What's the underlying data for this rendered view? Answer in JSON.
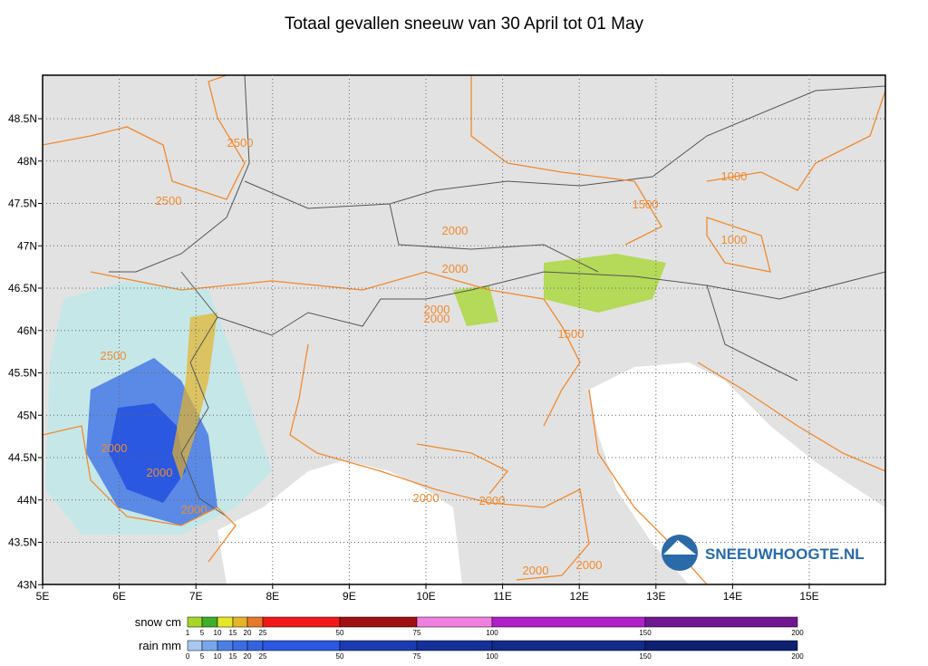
{
  "title": "Totaal gevallen sneeuw van 30 April tot 01 May",
  "lon_labels": [
    "5E",
    "6E",
    "7E",
    "8E",
    "9E",
    "10E",
    "11E",
    "12E",
    "13E",
    "14E",
    "15E"
  ],
  "lat_labels": [
    "48.5N",
    "48N",
    "47.5N",
    "47N",
    "46.5N",
    "46N",
    "45.5N",
    "45N",
    "44.5N",
    "44N",
    "43.5N",
    "43N"
  ],
  "contour_labels": [
    "2500",
    "2500",
    "1000",
    "1500",
    "1000",
    "2000",
    "2000",
    "2000",
    "2000",
    "1500",
    "2500",
    "2000",
    "2000",
    "2000",
    "2000",
    "2000",
    "2000",
    "2000"
  ],
  "logo": "SNEEUWHOOGTE.NL",
  "snow_legend": {
    "title": "snow cm",
    "ticks": [
      1,
      5,
      10,
      15,
      20,
      25,
      50,
      75,
      100,
      150,
      200
    ],
    "colors": [
      "#a6d62a",
      "#3fae2a",
      "#e6e62a",
      "#e6b42a",
      "#e67a2a",
      "#f01818",
      "#a01010",
      "#f080e0",
      "#b020c8",
      "#701890"
    ]
  },
  "rain_legend": {
    "title": "rain mm",
    "ticks": [
      0,
      5,
      10,
      15,
      20,
      25,
      50,
      75,
      100,
      150,
      200
    ],
    "colors": [
      "#a8c8f0",
      "#78a8ec",
      "#4a80e4",
      "#3a6ee0",
      "#3464dc",
      "#2a58e0",
      "#1a3cb0",
      "#16309a",
      "#122a88",
      "#0e2070"
    ]
  }
}
